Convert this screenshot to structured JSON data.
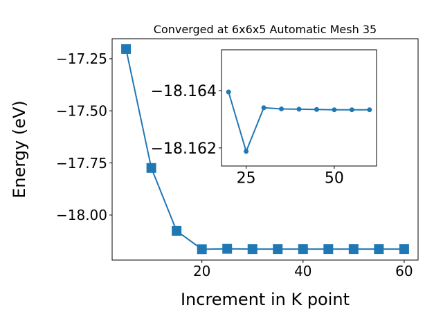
{
  "chart_data": [
    {
      "type": "line",
      "title": "Converged at 6x6x5 Automatic Mesh 35",
      "x_label": "Increment in K point",
      "y_label": "Energy (eV)",
      "x": [
        5,
        10,
        15,
        20,
        25,
        30,
        35,
        40,
        45,
        50,
        55,
        60
      ],
      "series": [
        {
          "color": "#1f77b4",
          "marker": "square",
          "values": [
            -17.2035,
            -17.774,
            -18.076,
            -18.16395,
            -18.16188,
            -18.1634,
            -18.16336,
            -18.16335,
            -18.16334,
            -18.16333,
            -18.16333,
            -18.16333
          ]
        }
      ],
      "xlim": [
        2.25,
        62.75
      ],
      "ylim": [
        -18.216,
        -17.154
      ],
      "xticks": [
        20,
        40,
        60
      ],
      "yticks": [
        {
          "value": -17.25,
          "label": "−17.25"
        },
        {
          "value": -17.5,
          "label": "−17.50"
        },
        {
          "value": -17.75,
          "label": "−17.75"
        },
        {
          "value": -18.0,
          "label": "−18.00"
        }
      ]
    },
    {
      "type": "line",
      "x": [
        20,
        25,
        30,
        35,
        40,
        45,
        50,
        55,
        60
      ],
      "series": [
        {
          "color": "#1f77b4",
          "marker": "circle",
          "values": [
            -18.16395,
            -18.16188,
            -18.1634,
            -18.16336,
            -18.16335,
            -18.16334,
            -18.16333,
            -18.16333,
            -18.16333
          ]
        }
      ],
      "xlim": [
        18.0,
        62.0
      ],
      "ylim": [
        -18.16137,
        -18.16542
      ],
      "xticks": [
        25,
        50
      ],
      "yticks": [
        {
          "value": -18.164,
          "label": "−18.164"
        },
        {
          "value": -18.162,
          "label": "−18.162"
        }
      ]
    }
  ]
}
